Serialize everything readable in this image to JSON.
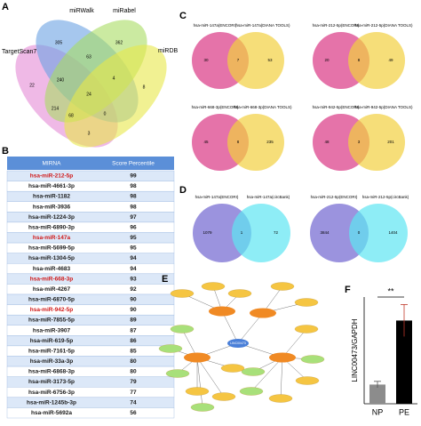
{
  "panels": {
    "A": {
      "letter": "A",
      "sets": [
        "TargetScan7",
        "miRWalk",
        "miRabel",
        "miRDB"
      ],
      "numbers": [
        305,
        362,
        63,
        22,
        240,
        4,
        8,
        24,
        214,
        68,
        0,
        3
      ]
    },
    "B": {
      "letter": "B",
      "header": [
        "MIRNA",
        "Score Percentile"
      ],
      "rows": [
        [
          "hsa-miR-212-5p",
          99
        ],
        [
          "hsa-miR-4661-3p",
          98
        ],
        [
          "hsa-miR-1182",
          98
        ],
        [
          "hsa-miR-3936",
          98
        ],
        [
          "hsa-miR-1224-3p",
          97
        ],
        [
          "hsa-miR-6890-3p",
          96
        ],
        [
          "hsa-miR-147a",
          95
        ],
        [
          "hsa-miR-5699-5p",
          95
        ],
        [
          "hsa-miR-1304-5p",
          94
        ],
        [
          "hsa-miR-4683",
          94
        ],
        [
          "hsa-miR-668-3p",
          93
        ],
        [
          "hsa-miR-4267",
          92
        ],
        [
          "hsa-miR-6870-5p",
          90
        ],
        [
          "hsa-miR-942-5p",
          90
        ],
        [
          "hsa-miR-7855-5p",
          89
        ],
        [
          "hsa-miR-3907",
          87
        ],
        [
          "hsa-miR-619-5p",
          86
        ],
        [
          "hsa-miR-7161-5p",
          85
        ],
        [
          "hsa-miR-33a-3p",
          80
        ],
        [
          "hsa-miR-6868-3p",
          80
        ],
        [
          "hsa-miR-3173-5p",
          79
        ],
        [
          "hsa-miR-6756-3p",
          77
        ],
        [
          "hsa-miR-1245b-3p",
          74
        ],
        [
          "hsa-miR-5692a",
          56
        ]
      ],
      "highlighted": [
        0,
        6,
        10,
        13
      ]
    },
    "C": {
      "letter": "C",
      "venns": [
        {
          "left": "hsa-miR-147a(ENCORI)",
          "right": "hsa-miR-147a(DIANA TOOLS)",
          "numbers": [
            30,
            7,
            53
          ]
        },
        {
          "left": "hsa-miR-212-5p(ENCORI)",
          "right": "hsa-miR-212-5p(DIANA TOOLS)",
          "numbers": [
            20,
            8,
            49
          ]
        },
        {
          "left": "hsa-miR-668-3p(ENCORI)",
          "right": "hsa-miR-668-3p(DIANA TOOLS)",
          "numbers": [
            45,
            8,
            235
          ]
        },
        {
          "left": "hsa-miR-942-5p(ENCORI)",
          "right": "hsa-miR-942-5p(DIANA TOOLS)",
          "numbers": [
            48,
            3,
            201
          ]
        }
      ]
    },
    "D": {
      "letter": "D",
      "venns": [
        {
          "left": "hsa-miR-147a(ENCORI)",
          "right": "hsa-miR-147a(circBank)",
          "numbers": [
            1079,
            1,
            72
          ]
        },
        {
          "left": "hsa-miR-212-5p(ENCORI)",
          "right": "hsa-miR-212-5p(circBank)",
          "numbers": [
            3844,
            0,
            1404
          ]
        }
      ]
    },
    "E": {
      "letter": "E",
      "center": "LINC00473"
    },
    "F": {
      "letter": "F",
      "ylabel": "LINC00473/GAPDH",
      "categories": [
        "NP",
        "PE"
      ],
      "values": [
        0.9,
        3.9
      ],
      "errors": [
        0.15,
        0.75
      ],
      "colors": [
        "#8c8c8c",
        "#000000"
      ],
      "ylim": [
        0,
        5
      ],
      "significance": "**"
    }
  }
}
